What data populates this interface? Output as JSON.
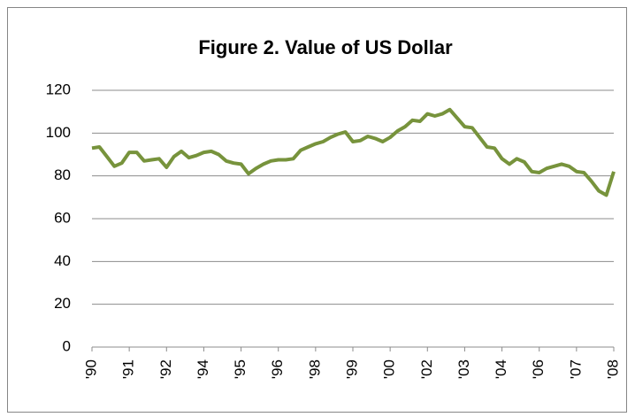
{
  "chart_data": {
    "type": "line",
    "title": "Figure 2. Value of US Dollar",
    "categories": [
      "'90",
      null,
      null,
      null,
      null,
      "'91",
      null,
      null,
      null,
      null,
      "'92",
      null,
      null,
      null,
      null,
      "'94",
      null,
      null,
      null,
      null,
      "'95",
      null,
      null,
      null,
      null,
      "'96",
      null,
      null,
      null,
      null,
      "'98",
      null,
      null,
      null,
      null,
      "'99",
      null,
      null,
      null,
      null,
      "'00",
      null,
      null,
      null,
      null,
      "'02",
      null,
      null,
      null,
      null,
      "'03",
      null,
      null,
      null,
      null,
      "'04",
      null,
      null,
      null,
      null,
      "'06",
      null,
      null,
      null,
      null,
      "'07",
      null,
      null,
      null,
      null,
      "'08"
    ],
    "series": [
      {
        "name": "Value of US Dollar",
        "color": "#77933c",
        "values": [
          93,
          93.5,
          89,
          84.5,
          86,
          91,
          91,
          87,
          87.5,
          88,
          84,
          89,
          91.5,
          88.5,
          89.5,
          91,
          91.5,
          90,
          87,
          86,
          85.5,
          81,
          83.5,
          85.5,
          87,
          87.5,
          87.5,
          88,
          92,
          93.5,
          95,
          96,
          98,
          99.5,
          100.5,
          96,
          96.5,
          98.5,
          97.5,
          96,
          98,
          101,
          103,
          106,
          105.5,
          109,
          108,
          109,
          111,
          107,
          103,
          102.5,
          98,
          93.5,
          93,
          88,
          85.5,
          88,
          86.5,
          82,
          81.5,
          83.5,
          84.5,
          85.5,
          84.5,
          82,
          81.5,
          77.5,
          73,
          71,
          82
        ]
      }
    ],
    "ylim": [
      0,
      120
    ],
    "yticks": [
      0,
      20,
      40,
      60,
      80,
      100,
      120
    ],
    "grid": true
  }
}
